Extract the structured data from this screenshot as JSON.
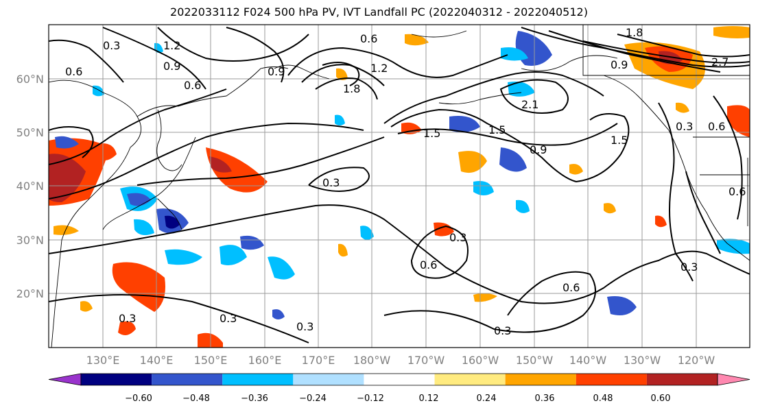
{
  "title": "2022033112 F024 500 hPa PV, IVT Landfall PC (2022040312 - 2022040512)",
  "lat_labels": [
    "60°N",
    "50°N",
    "40°N",
    "30°N",
    "20°N"
  ],
  "lon_labels": [
    "130°E",
    "140°E",
    "150°E",
    "160°E",
    "170°E",
    "180°W",
    "170°W",
    "160°W",
    "150°W",
    "140°W",
    "130°W",
    "120°W"
  ],
  "colorbar": {
    "labels": [
      "−0.60",
      "−0.48",
      "−0.36",
      "−0.24",
      "−0.12",
      "0.12",
      "0.24",
      "0.36",
      "0.48",
      "0.60"
    ],
    "colors": [
      "#9933cc",
      "#000080",
      "#3355cc",
      "#00bfff",
      "#b0e0ff",
      "#ffffff",
      "#ffeb80",
      "#ffa500",
      "#ff4000",
      "#b22222",
      "#ff88b0"
    ]
  },
  "contour_labels": [
    "0.3",
    "1.2",
    "0.9",
    "0.6",
    "0.6",
    "0.9",
    "0.6",
    "1.2",
    "1.8",
    "0.3",
    "1.5",
    "0.9",
    "1.5",
    "2.1",
    "0.3",
    "0.3",
    "0.6",
    "0.3",
    "0.6",
    "0.3",
    "0.3",
    "0.3",
    "0.6",
    "0.3",
    "2.7",
    "0.9",
    "1.8",
    "1.5",
    "0.6"
  ]
}
